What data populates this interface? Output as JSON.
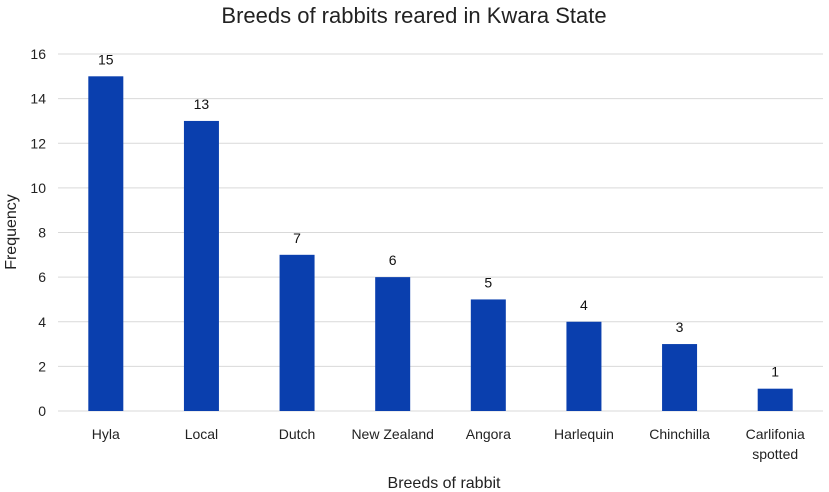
{
  "chart_data": {
    "type": "bar",
    "title": "Breeds of rabbits reared in Kwara State",
    "xlabel": "Breeds of rabbit",
    "ylabel": "Frequency",
    "categories": [
      [
        "Hyla"
      ],
      [
        "Local"
      ],
      [
        "Dutch"
      ],
      [
        "New Zealand"
      ],
      [
        "Angora"
      ],
      [
        "Harlequin"
      ],
      [
        "Chinchilla"
      ],
      [
        "Carlifonia",
        "spotted"
      ]
    ],
    "values": [
      15,
      13,
      7,
      6,
      5,
      4,
      3,
      1
    ],
    "data_labels": [
      "15",
      "13",
      "7",
      "6",
      "5",
      "4",
      "3",
      "1"
    ],
    "ylim": [
      0,
      16
    ],
    "yticks": [
      "0",
      "2",
      "4",
      "6",
      "8",
      "10",
      "12",
      "14",
      "16"
    ],
    "grid": true,
    "legend": "none",
    "colors": {
      "bar": "#0a3fae",
      "grid": "#d9d9d9",
      "text": "#222222"
    }
  }
}
